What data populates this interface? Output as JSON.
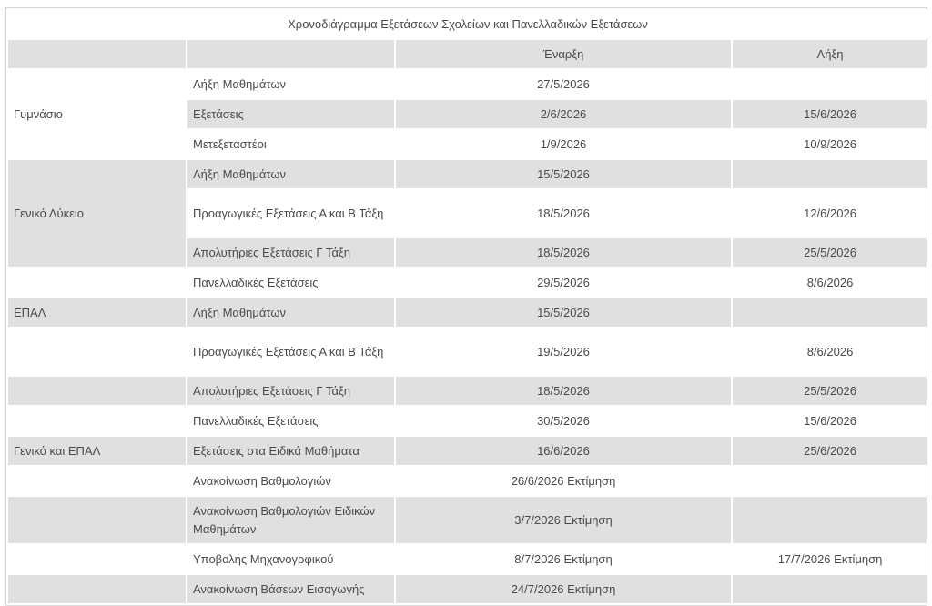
{
  "title": "Χρονοδιάγραμμα Εξετάσεων Σχολείων και Πανελλαδικών Εξετάσεων",
  "headers": [
    "",
    "",
    "Έναρξη",
    "Λήξη"
  ],
  "rows": [
    {
      "group": "Γυμνάσιο",
      "event": "Λήξη Μαθημάτων",
      "start": "27/5/2026",
      "end": ""
    },
    {
      "group": "",
      "event": "Εξετάσεις",
      "start": "2/6/2026",
      "end": "15/6/2026"
    },
    {
      "group": "",
      "event": "Μετεξεταστέοι",
      "start": "1/9/2026",
      "end": "10/9/2026"
    },
    {
      "group": "Γενικό Λύκειο",
      "event": "Λήξη Μαθημάτων",
      "start": "15/5/2026",
      "end": ""
    },
    {
      "group": "",
      "event": "Προαγωγικές  Εξετάσεις Α και Β Τάξη",
      "start": "18/5/2026",
      "end": "12/6/2026"
    },
    {
      "group": "",
      "event": "Απολυτήριες  Εξετάσεις Γ Τάξη",
      "start": "18/5/2026",
      "end": "25/5/2026"
    },
    {
      "group": "",
      "event": "Πανελλαδικές Εξετάσεις",
      "start": "29/5/2026",
      "end": "8/6/2026"
    },
    {
      "group": "ΕΠΑΛ",
      "event": "Λήξη Μαθημάτων",
      "start": "15/5/2026",
      "end": ""
    },
    {
      "group": "",
      "event": "Προαγωγικές  Εξετάσεις Α και Β Τάξη",
      "start": "19/5/2026",
      "end": "8/6/2026"
    },
    {
      "group": "",
      "event": "Απολυτήριες  Εξετάσεις Γ Τάξη",
      "start": "18/5/2026",
      "end": "25/5/2026"
    },
    {
      "group": "",
      "event": "Πανελλαδικές Εξετάσεις",
      "start": "30/5/2026",
      "end": "15/6/2026"
    },
    {
      "group": "Γενικό και ΕΠΑΛ",
      "event": "Εξετάσεις στα Ειδικά Μαθήματα",
      "start": "16/6/2026",
      "end": "25/6/2026"
    },
    {
      "group": "",
      "event": "Ανακοίνωση Βαθμολογιών",
      "start": "26/6/2026 Εκτίμηση",
      "end": ""
    },
    {
      "group": "",
      "event": "Ανακοίνωση Βαθμολογιών Ειδικών Μαθημάτων",
      "start": "3/7/2026 Εκτίμηση",
      "end": ""
    },
    {
      "group": "",
      "event": "Υποβολής Μηχανογρφικού",
      "start": "8/7/2026 Εκτίμηση",
      "end": "17/7/2026 Εκτίμηση"
    },
    {
      "group": "",
      "event": "Ανακοίνωση Βάσεων Εισαγωγής",
      "start": "24/7/2026 Εκτίμηση",
      "end": ""
    }
  ]
}
